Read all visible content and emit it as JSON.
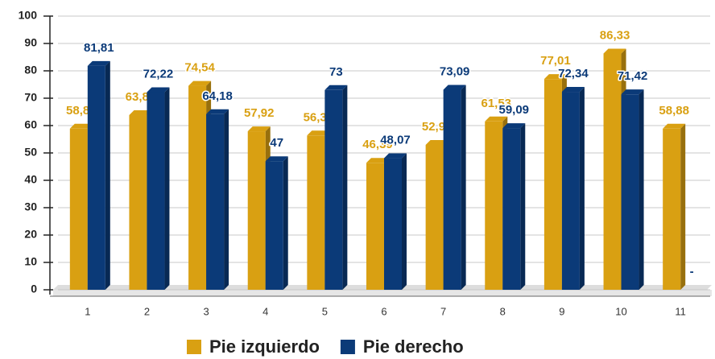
{
  "chart_data": {
    "type": "bar",
    "categories": [
      "1",
      "2",
      "3",
      "4",
      "5",
      "6",
      "7",
      "8",
      "9",
      "10",
      "11"
    ],
    "series": [
      {
        "name": "Pie izquierdo",
        "color": "#D9A012",
        "values": [
          58.88,
          63.82,
          74.54,
          57.92,
          56.38,
          46.39,
          52.94,
          61.53,
          77.01,
          86.33,
          58.88
        ],
        "value_labels": [
          "58,88",
          "63,82",
          "74,54",
          "57,92",
          "56,38",
          "46,39",
          "52,94",
          "61,53",
          "77,01",
          "86,33",
          "58,88"
        ]
      },
      {
        "name": "Pie derecho",
        "color": "#0B3A78",
        "values": [
          81.81,
          72.22,
          64.18,
          47,
          73,
          48.07,
          73.09,
          59.09,
          72.34,
          71.42,
          null
        ],
        "value_labels": [
          "81,81",
          "72,22",
          "64,18",
          "47",
          "73",
          "48,07",
          "73,09",
          "59,09",
          "72,34",
          "71,42",
          "-"
        ]
      }
    ],
    "ylim": [
      0,
      100
    ],
    "yticks": [
      0,
      10,
      20,
      30,
      40,
      50,
      60,
      70,
      80,
      90,
      100
    ],
    "grid": true,
    "legend": "bottom"
  }
}
